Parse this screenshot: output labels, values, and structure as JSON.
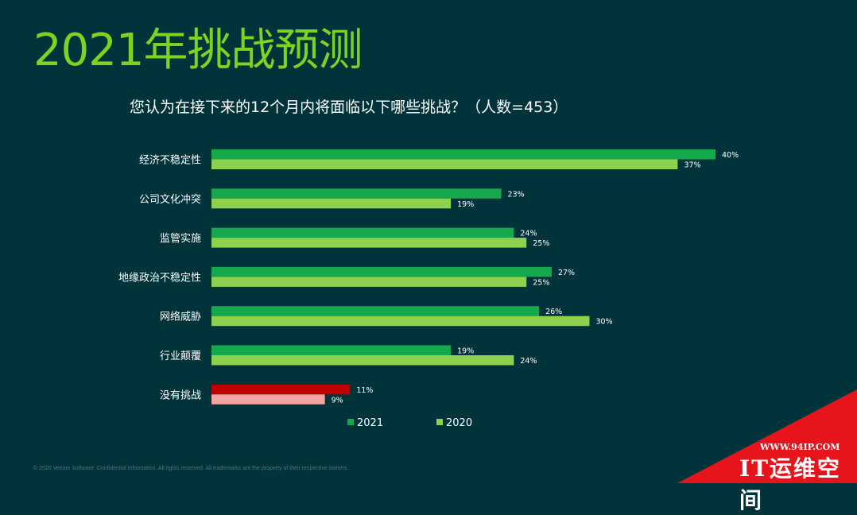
{
  "page": {
    "title": "2021年挑战预测",
    "subtitle": "您认为在接下来的12个月内将面临以下哪些挑战？（人数=453）",
    "footer": "© 2020 Veeam Software. Confidential information. All rights reserved. All trademarks are the property of their respective owners."
  },
  "watermark": {
    "url": "WWW.94IP.COM",
    "brand": "IT运维空间"
  },
  "colors": {
    "background": "#00343a",
    "title": "#7ed321",
    "series_2021": "#16a84c",
    "series_2020": "#8ed14f",
    "highlight_2021": "#c00000",
    "highlight_2020": "#f4a3a3",
    "watermark": "#e8141c"
  },
  "chart_data": {
    "type": "bar",
    "orientation": "horizontal",
    "categories": [
      "经济不稳定性",
      "公司文化冲突",
      "监管实施",
      "地缘政治不稳定性",
      "网络威胁",
      "行业颠覆",
      "没有挑战"
    ],
    "series": [
      {
        "name": "2021",
        "values": [
          40,
          23,
          24,
          27,
          26,
          19,
          11
        ],
        "labels": [
          "40%",
          "23%",
          "24%",
          "27%",
          "26%",
          "19%",
          "11%"
        ]
      },
      {
        "name": "2020",
        "values": [
          37,
          19,
          25,
          25,
          30,
          24,
          9
        ],
        "labels": [
          "37%",
          "19%",
          "25%",
          "25%",
          "30%",
          "24%",
          "9%"
        ]
      }
    ],
    "highlighted_category": "没有挑战",
    "unit": "%",
    "xlim": [
      0,
      40
    ],
    "grid": false,
    "legend_position": "bottom"
  }
}
